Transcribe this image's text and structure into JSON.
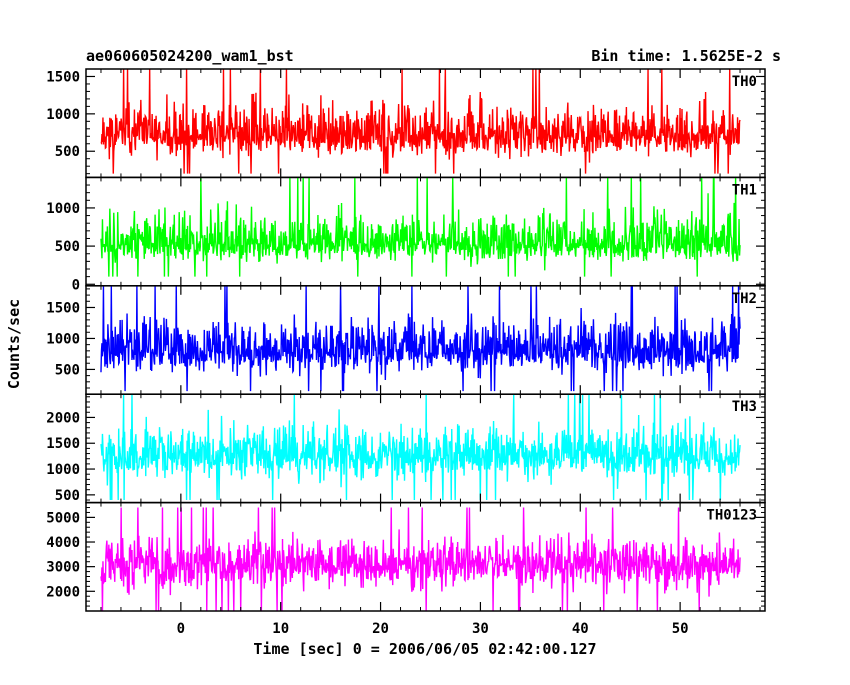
{
  "header": {
    "title": "ae060605024200_wam1_bst",
    "bin_time": "Bin time: 1.5625E-2 s"
  },
  "chart_data": {
    "type": "line",
    "title": "ae060605024200_wam1_bst",
    "subtitle": "Bin time: 1.5625E-2 s",
    "xlabel": "Time [sec] 0 = 2006/06/05 02:42:00.127",
    "ylabel": "Counts/sec",
    "xlim": [
      -9.5,
      58.5
    ],
    "data_x_range": [
      -8.0,
      56.0
    ],
    "x_ticks": [
      0,
      10,
      20,
      30,
      40,
      50
    ],
    "grid": false,
    "panels": [
      {
        "name": "TH0",
        "color": "#ff0000",
        "ylim": [
          150,
          1600
        ],
        "y_ticks": [
          500,
          1000,
          1500
        ],
        "y_range_approx": [
          200,
          1600
        ],
        "mean_approx": 700,
        "trace_seed": 11
      },
      {
        "name": "TH1",
        "color": "#00ff00",
        "ylim": [
          -20,
          1400
        ],
        "y_ticks": [
          0,
          500,
          1000
        ],
        "y_range_approx": [
          100,
          1400
        ],
        "mean_approx": 530,
        "trace_seed": 23
      },
      {
        "name": "TH2",
        "color": "#0000ff",
        "ylim": [
          100,
          1850
        ],
        "y_ticks": [
          500,
          1000,
          1500
        ],
        "y_range_approx": [
          150,
          1850
        ],
        "mean_approx": 800,
        "trace_seed": 37
      },
      {
        "name": "TH3",
        "color": "#00ffff",
        "ylim": [
          350,
          2450
        ],
        "y_ticks": [
          500,
          1000,
          1500,
          2000
        ],
        "y_range_approx": [
          400,
          2450
        ],
        "mean_approx": 1250,
        "trace_seed": 51
      },
      {
        "name": "TH0123",
        "color": "#ff00ff",
        "ylim": [
          1200,
          5600
        ],
        "y_ticks": [
          2000,
          3000,
          4000,
          5000
        ],
        "y_range_approx": [
          1200,
          5400
        ],
        "mean_approx": 3100,
        "trace_seed": 67
      }
    ]
  }
}
